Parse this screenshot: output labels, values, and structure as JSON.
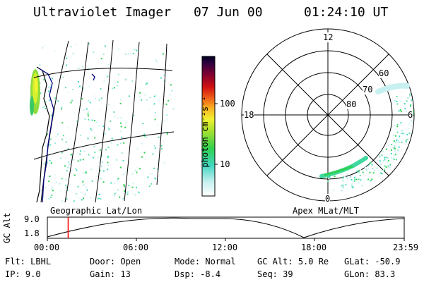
{
  "header": {
    "instrument": "Ultraviolet Imager",
    "date": "07 Jun 00",
    "time": "01:24:10 UT"
  },
  "colorbar": {
    "label": "photon cm⁻²s⁻¹",
    "ticks": [
      "100",
      "10"
    ],
    "scale": "log"
  },
  "polar": {
    "mlt_labels": [
      "12",
      "18",
      "6",
      "0"
    ],
    "lat_labels": [
      "60",
      "70",
      "80"
    ]
  },
  "map_labels": {
    "left": "Geographic Lat/Lon",
    "right": "Apex MLat/MLT"
  },
  "gc_alt_plot": {
    "ylabel": "GC Alt",
    "yticks": [
      "9.0",
      "1.8"
    ],
    "xticks": [
      "00:00",
      "06:00",
      "12:00",
      "18:00",
      "23:59"
    ],
    "cursor_time": "01:24",
    "cursor_color": "#ff0000"
  },
  "info": {
    "filter": {
      "label": "Flt:",
      "value": "LBHL"
    },
    "ip": {
      "label": "IP:",
      "value": "9.0"
    },
    "door": {
      "label": "Door:",
      "value": "Open"
    },
    "gain": {
      "label": "Gain:",
      "value": "13"
    },
    "mode": {
      "label": "Mode:",
      "value": "Normal"
    },
    "dsp": {
      "label": "Dsp:",
      "value": "-8.4"
    },
    "gc_alt": {
      "label": "GC Alt:",
      "value": "5.0 Re"
    },
    "seq": {
      "label": "Seq:",
      "value": "39"
    },
    "glat": {
      "label": "GLat:",
      "value": "-50.9"
    },
    "glon": {
      "label": "GLon:",
      "value": "83.3"
    }
  }
}
